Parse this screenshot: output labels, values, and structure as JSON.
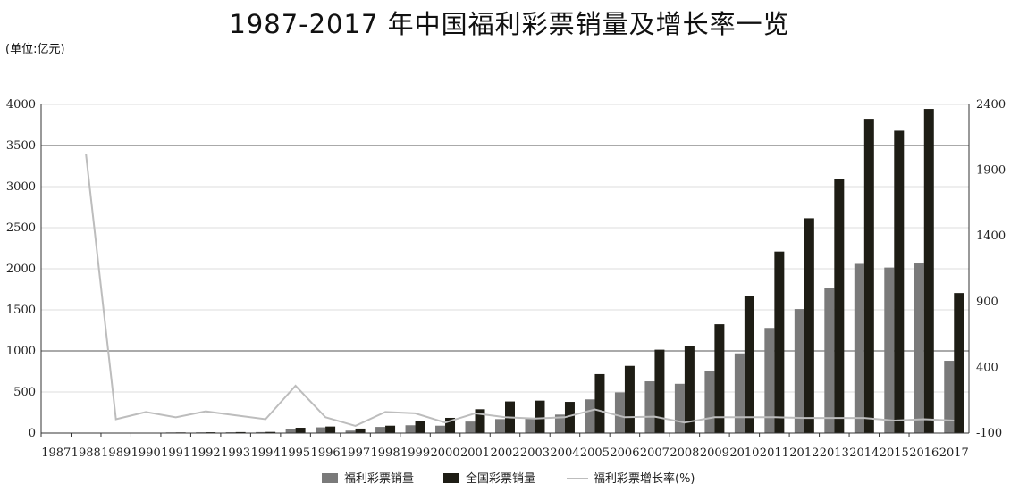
{
  "title": "1987-2017 年中国福利彩票销量及增长率一览",
  "unit_label": "(单位:亿元)",
  "colors": {
    "welfare": "#7a7a7a",
    "national": "#1e1d15",
    "growth": "#bdbdbd"
  },
  "chart_data": {
    "type": "bar",
    "title": "1987-2017 年中国福利彩票销量及增长率一览",
    "categories": [
      "1987",
      "1988",
      "1989",
      "1990",
      "1991",
      "1992",
      "1993",
      "1994",
      "1995",
      "1996",
      "1997",
      "1998",
      "1999",
      "2000",
      "2001",
      "2002",
      "2003",
      "2004",
      "2005",
      "2006",
      "2007",
      "2008",
      "2009",
      "2010",
      "2011",
      "2012",
      "2013",
      "2014",
      "2015",
      "2016",
      "2017"
    ],
    "ylim": [
      0,
      4000
    ],
    "yticks": [
      "0",
      "500",
      "1000",
      "1500",
      "2000",
      "2500",
      "3000",
      "3500",
      "4000"
    ],
    "y2lim": [
      -100,
      2400
    ],
    "y2ticks": [
      "-100",
      "400",
      "900",
      "1400",
      "1900",
      "2400"
    ],
    "grid": "y",
    "legend_position": "bottom",
    "series": [
      {
        "name": "福利彩票销量",
        "type": "bar",
        "values": [
          0.2,
          4,
          4,
          5,
          8,
          9,
          10,
          12,
          52,
          70,
          30,
          75,
          95,
          90,
          140,
          170,
          185,
          225,
          410,
          495,
          630,
          600,
          755,
          970,
          1280,
          1510,
          1765,
          2060,
          2015,
          2065,
          880
        ]
      },
      {
        "name": "全国彩票销量",
        "type": "bar",
        "values": [
          0.2,
          4,
          4,
          5,
          8,
          10,
          12,
          14,
          65,
          80,
          55,
          90,
          145,
          185,
          290,
          385,
          395,
          380,
          718,
          818,
          1015,
          1065,
          1325,
          1665,
          2210,
          2615,
          3095,
          3825,
          3680,
          3945,
          1705
        ]
      },
      {
        "name": "福利彩票增长率(%)",
        "type": "line",
        "axis": "right",
        "values": [
          null,
          2020,
          5,
          60,
          20,
          65,
          35,
          5,
          260,
          20,
          -45,
          60,
          50,
          -20,
          50,
          20,
          10,
          20,
          80,
          20,
          25,
          -20,
          20,
          20,
          20,
          15,
          15,
          15,
          -5,
          5,
          -5
        ]
      }
    ]
  }
}
